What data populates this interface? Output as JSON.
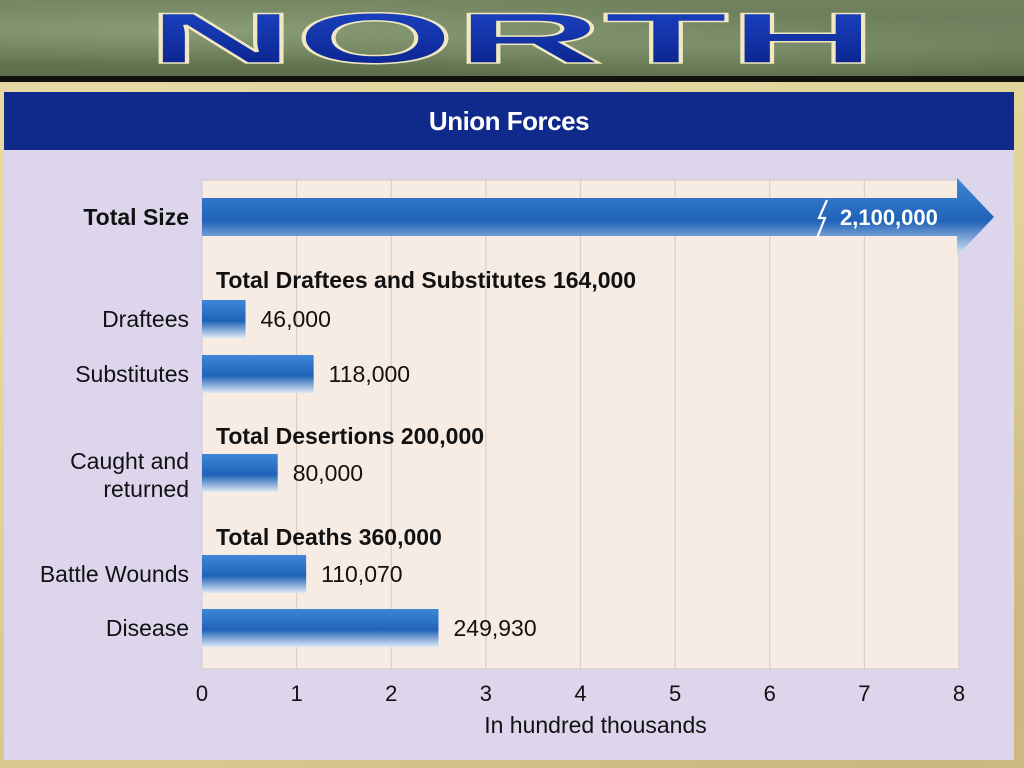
{
  "banner": {
    "title": "NORTH"
  },
  "panel": {
    "heading": "Union Forces"
  },
  "colors": {
    "banner_text": "#0a2a9a",
    "panel_header": "#0f2a8a",
    "bar": "#1f63b8",
    "plot_bg": "#f6ece4",
    "panel_bg": "#dcd5ec"
  },
  "chart_data": {
    "type": "bar",
    "orientation": "horizontal",
    "title": "Union Forces",
    "xlabel": "In hundred thousands",
    "xlim": [
      0,
      8
    ],
    "xticks": [
      "0",
      "1",
      "2",
      "3",
      "4",
      "5",
      "6",
      "7",
      "8"
    ],
    "grid": "vertical",
    "bars": [
      {
        "label": "Total Size",
        "value": 2100000,
        "value_label": "2,100,000",
        "bold": true,
        "overflow_arrow": true
      },
      {
        "label": "Draftees",
        "value": 46000,
        "value_label": "46,000"
      },
      {
        "label": "Substitutes",
        "value": 118000,
        "value_label": "118,000"
      },
      {
        "label": "Caught and returned",
        "label_lines": [
          "Caught and",
          "returned"
        ],
        "value": 80000,
        "value_label": "80,000"
      },
      {
        "label": "Battle Wounds",
        "value": 110070,
        "value_label": "110,070"
      },
      {
        "label": "Disease",
        "value": 249930,
        "value_label": "249,930"
      }
    ],
    "group_headings": [
      {
        "text": "Total Draftees and Substitutes 164,000",
        "before": "Draftees"
      },
      {
        "text": "Total Desertions 200,000",
        "before": "Caught and returned"
      },
      {
        "text": "Total Deaths 360,000",
        "before": "Battle Wounds"
      }
    ]
  }
}
